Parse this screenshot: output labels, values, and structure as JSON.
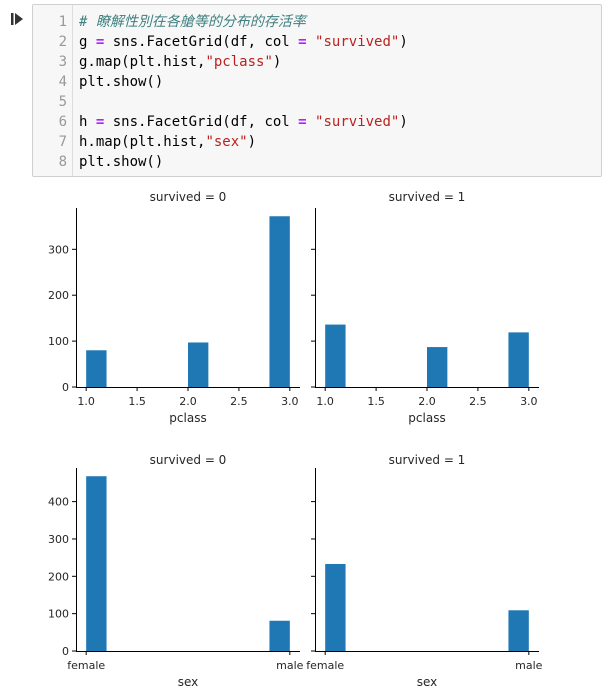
{
  "code_cell": {
    "lines": [
      {
        "num": "1",
        "tokens": [
          {
            "t": "# 瞭解性別在各艙等的分布的存活率",
            "c": "comment"
          }
        ]
      },
      {
        "num": "2",
        "tokens": [
          {
            "t": "g "
          },
          {
            "t": "=",
            "c": "op"
          },
          {
            "t": " sns.FacetGrid(df, col "
          },
          {
            "t": "=",
            "c": "op"
          },
          {
            "t": " "
          },
          {
            "t": "\"survived\"",
            "c": "str"
          },
          {
            "t": ")"
          }
        ]
      },
      {
        "num": "3",
        "tokens": [
          {
            "t": "g.map(plt.hist,"
          },
          {
            "t": "\"pclass\"",
            "c": "str"
          },
          {
            "t": ")"
          }
        ]
      },
      {
        "num": "4",
        "tokens": [
          {
            "t": "plt.show()"
          }
        ]
      },
      {
        "num": "5",
        "tokens": []
      },
      {
        "num": "6",
        "tokens": [
          {
            "t": "h "
          },
          {
            "t": "=",
            "c": "op"
          },
          {
            "t": " sns.FacetGrid(df, col "
          },
          {
            "t": "=",
            "c": "op"
          },
          {
            "t": " "
          },
          {
            "t": "\"survived\"",
            "c": "str"
          },
          {
            "t": ")"
          }
        ]
      },
      {
        "num": "7",
        "tokens": [
          {
            "t": "h.map(plt.hist,"
          },
          {
            "t": "\"sex\"",
            "c": "str"
          },
          {
            "t": ")"
          }
        ]
      },
      {
        "num": "8",
        "tokens": [
          {
            "t": "plt.show()"
          }
        ]
      }
    ]
  },
  "colors": {
    "bar": "#1f77b4",
    "axis": "#000000",
    "tick_text": "#262626"
  },
  "chart_data": [
    {
      "type": "bar",
      "title": "survived = 0",
      "xlabel": "pclass",
      "ylabel": "",
      "x_ticks": [
        1.0,
        1.5,
        2.0,
        2.5,
        3.0
      ],
      "x_tick_labels": [
        "1.0",
        "1.5",
        "2.0",
        "2.5",
        "3.0"
      ],
      "xlim": [
        0.9,
        3.1
      ],
      "y_ticks": [
        0,
        100,
        200,
        300
      ],
      "ylim": [
        0,
        390
      ],
      "bins": [
        {
          "x0": 1.0,
          "x1": 1.2,
          "value": 80
        },
        {
          "x0": 2.0,
          "x1": 2.2,
          "value": 97
        },
        {
          "x0": 2.8,
          "x1": 3.0,
          "value": 372
        }
      ]
    },
    {
      "type": "bar",
      "title": "survived = 1",
      "xlabel": "pclass",
      "ylabel": "",
      "x_ticks": [
        1.0,
        1.5,
        2.0,
        2.5,
        3.0
      ],
      "x_tick_labels": [
        "1.0",
        "1.5",
        "2.0",
        "2.5",
        "3.0"
      ],
      "xlim": [
        0.9,
        3.1
      ],
      "y_ticks": [
        0,
        100,
        200,
        300
      ],
      "ylim": [
        0,
        390
      ],
      "bins": [
        {
          "x0": 1.0,
          "x1": 1.2,
          "value": 136
        },
        {
          "x0": 2.0,
          "x1": 2.2,
          "value": 87
        },
        {
          "x0": 2.8,
          "x1": 3.0,
          "value": 119
        }
      ]
    },
    {
      "type": "bar",
      "title": "survived = 0",
      "xlabel": "sex",
      "ylabel": "",
      "x_ticks": [
        0,
        1
      ],
      "x_tick_labels": [
        "female",
        "male"
      ],
      "xlim": [
        -0.05,
        1.05
      ],
      "y_ticks": [
        0,
        100,
        200,
        300,
        400
      ],
      "ylim": [
        0,
        490
      ],
      "bins": [
        {
          "x0": 0.0,
          "x1": 0.1,
          "value": 468
        },
        {
          "x0": 0.9,
          "x1": 1.0,
          "value": 81
        }
      ]
    },
    {
      "type": "bar",
      "title": "survived = 1",
      "xlabel": "sex",
      "ylabel": "",
      "x_ticks": [
        0,
        1
      ],
      "x_tick_labels": [
        "female",
        "male"
      ],
      "xlim": [
        -0.05,
        1.05
      ],
      "y_ticks": [
        0,
        100,
        200,
        300,
        400
      ],
      "ylim": [
        0,
        490
      ],
      "bins": [
        {
          "x0": 0.0,
          "x1": 0.1,
          "value": 233
        },
        {
          "x0": 0.9,
          "x1": 1.0,
          "value": 109
        }
      ]
    }
  ]
}
